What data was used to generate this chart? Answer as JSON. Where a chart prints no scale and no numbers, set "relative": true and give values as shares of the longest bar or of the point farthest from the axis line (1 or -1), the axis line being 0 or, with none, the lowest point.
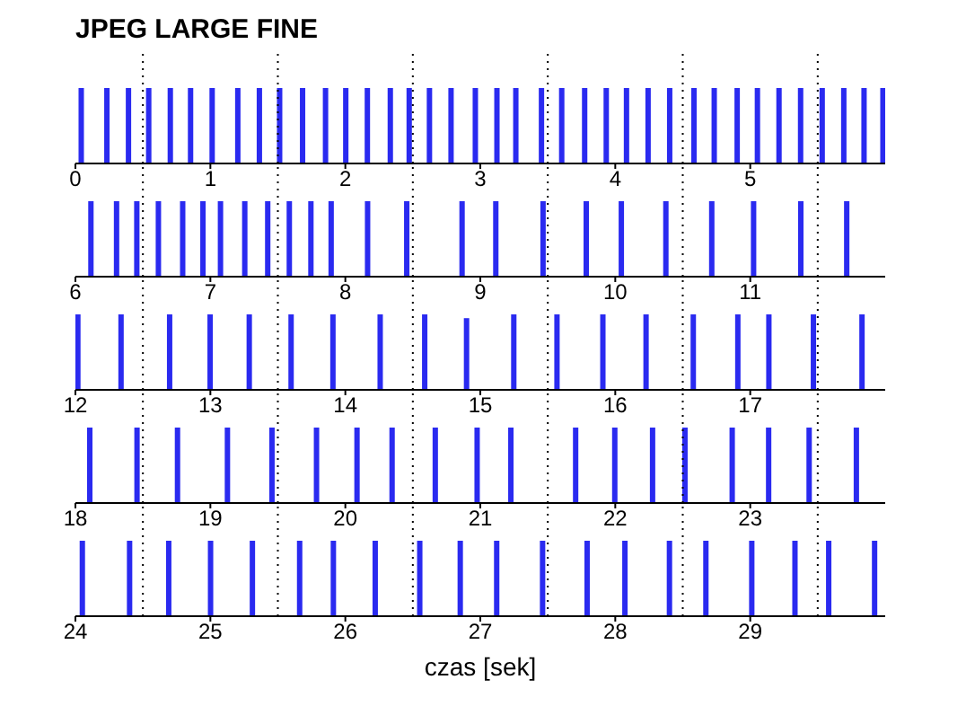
{
  "chart_data": [
    {
      "type": "bar",
      "title": "JPEG LARGE FINE",
      "relative": true,
      "tick_labels": "x",
      "color": "#2a2af0",
      "xlim": [
        0,
        6
      ],
      "xticks": [
        0,
        1,
        2,
        3,
        4,
        5
      ],
      "x": [
        0.04,
        0.23,
        0.39,
        0.54,
        0.7,
        0.85,
        1.01,
        1.2,
        1.36,
        1.51,
        1.68,
        1.85,
        2.0,
        2.16,
        2.33,
        2.47,
        2.62,
        2.78,
        2.96,
        3.12,
        3.26,
        3.45,
        3.6,
        3.77,
        3.93,
        4.08,
        4.24,
        4.4,
        4.58,
        4.73,
        4.9,
        5.05,
        5.21,
        5.37,
        5.53,
        5.69,
        5.84,
        5.98
      ],
      "values": [
        1,
        1,
        1,
        1,
        1,
        1,
        1,
        1,
        1,
        1,
        1,
        1,
        1,
        1,
        1,
        1,
        1,
        1,
        1,
        1,
        1,
        1,
        1,
        1,
        1,
        1,
        1,
        1,
        1,
        1,
        1,
        1,
        1,
        1,
        1,
        1,
        1,
        1
      ],
      "ref_lines": [
        {
          "axis": "x",
          "value": 0.5,
          "line_style": "dotted"
        },
        {
          "axis": "x",
          "value": 1.5,
          "line_style": "dotted"
        },
        {
          "axis": "x",
          "value": 2.5,
          "line_style": "dotted"
        },
        {
          "axis": "x",
          "value": 3.5,
          "line_style": "dotted"
        },
        {
          "axis": "x",
          "value": 4.5,
          "line_style": "dotted"
        },
        {
          "axis": "x",
          "value": 5.5,
          "line_style": "dotted"
        }
      ]
    },
    {
      "type": "bar",
      "relative": true,
      "tick_labels": "x",
      "color": "#2a2af0",
      "xlim": [
        6,
        12
      ],
      "xticks": [
        6,
        7,
        8,
        9,
        10,
        11
      ],
      "x": [
        6.12,
        6.31,
        6.46,
        6.62,
        6.8,
        6.95,
        7.08,
        7.26,
        7.43,
        7.59,
        7.75,
        7.9,
        8.17,
        8.46,
        8.87,
        9.12,
        9.47,
        9.79,
        10.05,
        10.38,
        10.72,
        11.03,
        11.38,
        11.72
      ],
      "values": [
        1,
        1,
        1,
        1,
        1,
        1,
        1,
        1,
        1,
        1,
        1,
        1,
        1,
        1,
        1,
        1,
        1,
        1,
        1,
        1,
        1,
        1,
        1,
        1
      ],
      "ref_lines": [
        {
          "axis": "x",
          "value": 6.5,
          "line_style": "dotted"
        },
        {
          "axis": "x",
          "value": 7.5,
          "line_style": "dotted"
        },
        {
          "axis": "x",
          "value": 8.5,
          "line_style": "dotted"
        },
        {
          "axis": "x",
          "value": 9.5,
          "line_style": "dotted"
        },
        {
          "axis": "x",
          "value": 10.5,
          "line_style": "dotted"
        },
        {
          "axis": "x",
          "value": 11.5,
          "line_style": "dotted"
        }
      ]
    },
    {
      "type": "bar",
      "relative": true,
      "tick_labels": "x",
      "color": "#2a2af0",
      "xlim": [
        12,
        18
      ],
      "xticks": [
        12,
        13,
        14,
        15,
        16,
        17
      ],
      "x": [
        12.02,
        12.34,
        12.7,
        13.0,
        13.29,
        13.6,
        13.91,
        14.26,
        14.59,
        14.9,
        15.25,
        15.57,
        15.91,
        16.23,
        16.58,
        16.91,
        17.14,
        17.47,
        17.83
      ],
      "values": [
        1,
        1,
        1,
        1,
        1,
        1,
        1,
        1,
        1,
        0.95,
        1,
        1,
        1,
        1,
        1,
        1,
        1,
        1,
        1
      ],
      "ref_lines": [
        {
          "axis": "x",
          "value": 12.5,
          "line_style": "dotted"
        },
        {
          "axis": "x",
          "value": 13.5,
          "line_style": "dotted"
        },
        {
          "axis": "x",
          "value": 14.5,
          "line_style": "dotted"
        },
        {
          "axis": "x",
          "value": 15.5,
          "line_style": "dotted"
        },
        {
          "axis": "x",
          "value": 16.5,
          "line_style": "dotted"
        },
        {
          "axis": "x",
          "value": 17.5,
          "line_style": "dotted"
        }
      ]
    },
    {
      "type": "bar",
      "relative": true,
      "tick_labels": "x",
      "color": "#2a2af0",
      "xlim": [
        18,
        24
      ],
      "xticks": [
        18,
        19,
        20,
        21,
        22,
        23
      ],
      "x": [
        18.1,
        18.45,
        18.75,
        19.12,
        19.45,
        19.78,
        20.08,
        20.34,
        20.66,
        20.97,
        21.22,
        21.7,
        21.99,
        22.27,
        22.51,
        22.86,
        23.13,
        23.43,
        23.78
      ],
      "values": [
        1,
        1,
        1,
        1,
        1,
        1,
        1,
        1,
        1,
        1,
        1,
        1,
        1,
        1,
        1,
        1,
        1,
        1,
        1
      ],
      "ref_lines": [
        {
          "axis": "x",
          "value": 18.5,
          "line_style": "dotted"
        },
        {
          "axis": "x",
          "value": 19.5,
          "line_style": "dotted"
        },
        {
          "axis": "x",
          "value": 20.5,
          "line_style": "dotted"
        },
        {
          "axis": "x",
          "value": 21.5,
          "line_style": "dotted"
        },
        {
          "axis": "x",
          "value": 22.5,
          "line_style": "dotted"
        },
        {
          "axis": "x",
          "value": 23.5,
          "line_style": "dotted"
        }
      ]
    },
    {
      "type": "bar",
      "relative": true,
      "tick_labels": "x",
      "color": "#2a2af0",
      "xlim": [
        24,
        30
      ],
      "xticks": [
        24,
        25,
        26,
        27,
        28,
        29
      ],
      "xlabel": "czas [sek]",
      "x": [
        24.05,
        24.4,
        24.69,
        25.0,
        25.31,
        25.66,
        25.91,
        26.22,
        26.55,
        26.85,
        27.12,
        27.46,
        27.79,
        28.07,
        28.4,
        28.67,
        29.01,
        29.33,
        29.58,
        29.92
      ],
      "values": [
        1,
        1,
        1,
        1,
        1,
        1,
        1,
        1,
        1,
        1,
        1,
        1,
        1,
        1,
        1,
        1,
        1,
        1,
        1,
        1
      ],
      "ref_lines": [
        {
          "axis": "x",
          "value": 24.5,
          "line_style": "dotted"
        },
        {
          "axis": "x",
          "value": 25.5,
          "line_style": "dotted"
        },
        {
          "axis": "x",
          "value": 26.5,
          "line_style": "dotted"
        },
        {
          "axis": "x",
          "value": 27.5,
          "line_style": "dotted"
        },
        {
          "axis": "x",
          "value": 28.5,
          "line_style": "dotted"
        },
        {
          "axis": "x",
          "value": 29.5,
          "line_style": "dotted"
        }
      ]
    }
  ]
}
